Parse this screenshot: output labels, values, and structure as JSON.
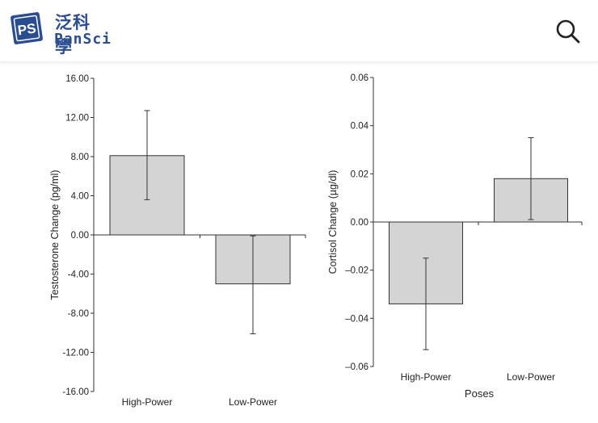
{
  "header": {
    "logo_badge": "PS",
    "logo_zh": "泛科學",
    "logo_en": "PanSci",
    "search_icon": "search-icon",
    "brand_color": "#2a4c90"
  },
  "chart_data": [
    {
      "type": "bar",
      "categories": [
        "High-Power",
        "Low-Power"
      ],
      "values": [
        8.1,
        -5.0
      ],
      "error_low": [
        3.6,
        -10.1
      ],
      "error_high": [
        12.7,
        -0.1
      ],
      "ylabel": "Testosterone Change (pg/ml)",
      "xlabel": "",
      "ylim": [
        -16,
        16
      ],
      "yticks": [
        "16.00",
        "12.00",
        "8.00",
        "4.00",
        "0.00",
        "-4.00",
        "-8.00",
        "-12.00",
        "-16.00"
      ],
      "ytick_values": [
        16,
        12,
        8,
        4,
        0,
        -4,
        -8,
        -12,
        -16
      ],
      "bar_color": "#d4d4d4"
    },
    {
      "type": "bar",
      "categories": [
        "High-Power",
        "Low-Power"
      ],
      "values": [
        -0.034,
        0.018
      ],
      "error_low": [
        -0.053,
        0.001
      ],
      "error_high": [
        -0.015,
        0.035
      ],
      "ylabel": "Cortisol Change (µg/dl)",
      "xlabel": "Poses",
      "ylim": [
        -0.06,
        0.06
      ],
      "yticks": [
        "0.06",
        "0.04",
        "0.02",
        "0.00",
        "–0.02",
        "–0.04",
        "–0.06"
      ],
      "ytick_values": [
        0.06,
        0.04,
        0.02,
        0,
        -0.02,
        -0.04,
        -0.06
      ],
      "bar_color": "#d4d4d4"
    }
  ]
}
